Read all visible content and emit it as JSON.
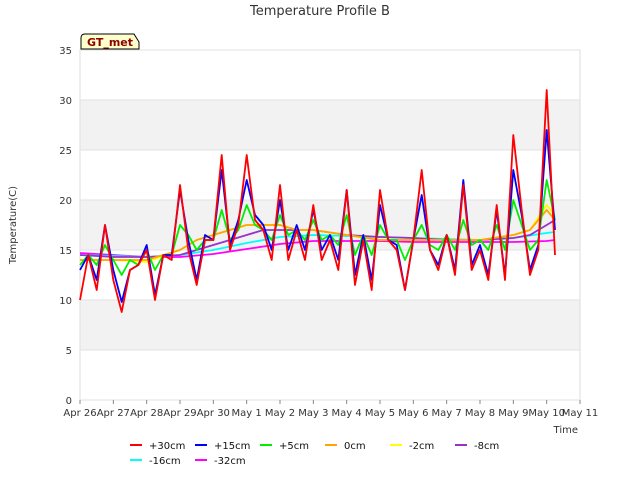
{
  "chart_data": {
    "type": "line",
    "title": "Temperature Profile B",
    "xlabel": "Time",
    "ylabel": "Temperature(C)",
    "badge": "GT_met",
    "ylim": [
      0,
      35
    ],
    "yticks": [
      0,
      5,
      10,
      15,
      20,
      25,
      30,
      35
    ],
    "xlim": [
      "2016-04-26",
      "2016-05-11"
    ],
    "xticks": [
      "Apr 26",
      "Apr 27",
      "Apr 28",
      "Apr 29",
      "Apr 30",
      "May 1",
      "May 2",
      "May 3",
      "May 4",
      "May 5",
      "May 6",
      "May 7",
      "May 8",
      "May 9",
      "May 10",
      "May 11"
    ],
    "grid": true,
    "legend_position": "bottom",
    "series": [
      {
        "name": "+30cm",
        "color": "#ff0000",
        "x": [
          "2016-04-26",
          "2016-04-26 06:00",
          "2016-04-26 12:00",
          "2016-04-26 18:00",
          "2016-04-27",
          "2016-04-27 06:00",
          "2016-04-27 12:00",
          "2016-04-27 18:00",
          "2016-04-28",
          "2016-04-28 06:00",
          "2016-04-28 12:00",
          "2016-04-28 18:00",
          "2016-04-29",
          "2016-04-29 06:00",
          "2016-04-29 12:00",
          "2016-04-29 18:00",
          "2016-04-30",
          "2016-04-30 06:00",
          "2016-04-30 12:00",
          "2016-04-30 18:00",
          "2016-05-01",
          "2016-05-01 06:00",
          "2016-05-01 12:00",
          "2016-05-01 18:00",
          "2016-05-02",
          "2016-05-02 06:00",
          "2016-05-02 12:00",
          "2016-05-02 18:00",
          "2016-05-03",
          "2016-05-03 06:00",
          "2016-05-03 12:00",
          "2016-05-03 18:00",
          "2016-05-04",
          "2016-05-04 06:00",
          "2016-05-04 12:00",
          "2016-05-04 18:00",
          "2016-05-05",
          "2016-05-05 06:00",
          "2016-05-05 12:00",
          "2016-05-05 18:00",
          "2016-05-06",
          "2016-05-06 06:00",
          "2016-05-06 12:00",
          "2016-05-06 18:00",
          "2016-05-07",
          "2016-05-07 06:00",
          "2016-05-07 12:00",
          "2016-05-07 18:00",
          "2016-05-08",
          "2016-05-08 06:00",
          "2016-05-08 12:00",
          "2016-05-08 18:00",
          "2016-05-09",
          "2016-05-09 06:00",
          "2016-05-09 12:00",
          "2016-05-09 18:00",
          "2016-05-10",
          "2016-05-10 06:00"
        ],
        "y": [
          10,
          14.5,
          11,
          17.5,
          12,
          8.8,
          13,
          13.5,
          15,
          10,
          14.5,
          14,
          21.5,
          15,
          11.5,
          16,
          16,
          24.5,
          15,
          17.5,
          24.5,
          18,
          17,
          14,
          21.5,
          14,
          17,
          14,
          19.5,
          14,
          16,
          13,
          21,
          11.5,
          16,
          11,
          21,
          16,
          15,
          11,
          16,
          23,
          15,
          13,
          16.5,
          12.5,
          21.5,
          13,
          15,
          12,
          19.5,
          12,
          26.5,
          19,
          12.5,
          15,
          31,
          14.5
        ]
      },
      {
        "name": "+15cm",
        "color": "#0000ff",
        "x": [
          "2016-04-26",
          "2016-04-26 06:00",
          "2016-04-26 12:00",
          "2016-04-26 18:00",
          "2016-04-27",
          "2016-04-27 06:00",
          "2016-04-27 12:00",
          "2016-04-27 18:00",
          "2016-04-28",
          "2016-04-28 06:00",
          "2016-04-28 12:00",
          "2016-04-28 18:00",
          "2016-04-29",
          "2016-04-29 06:00",
          "2016-04-29 12:00",
          "2016-04-29 18:00",
          "2016-04-30",
          "2016-04-30 06:00",
          "2016-04-30 12:00",
          "2016-04-30 18:00",
          "2016-05-01",
          "2016-05-01 06:00",
          "2016-05-01 12:00",
          "2016-05-01 18:00",
          "2016-05-02",
          "2016-05-02 06:00",
          "2016-05-02 12:00",
          "2016-05-02 18:00",
          "2016-05-03",
          "2016-05-03 06:00",
          "2016-05-03 12:00",
          "2016-05-03 18:00",
          "2016-05-04",
          "2016-05-04 06:00",
          "2016-05-04 12:00",
          "2016-05-04 18:00",
          "2016-05-05",
          "2016-05-05 06:00",
          "2016-05-05 12:00",
          "2016-05-05 18:00",
          "2016-05-06",
          "2016-05-06 06:00",
          "2016-05-06 12:00",
          "2016-05-06 18:00",
          "2016-05-07",
          "2016-05-07 06:00",
          "2016-05-07 12:00",
          "2016-05-07 18:00",
          "2016-05-08",
          "2016-05-08 06:00",
          "2016-05-08 12:00",
          "2016-05-08 18:00",
          "2016-05-09",
          "2016-05-09 06:00",
          "2016-05-09 12:00",
          "2016-05-09 18:00",
          "2016-05-10",
          "2016-05-10 06:00"
        ],
        "y": [
          13,
          14.5,
          12,
          17.5,
          13,
          9.8,
          13,
          13.5,
          15.5,
          10.5,
          14.5,
          14.5,
          21,
          16,
          12,
          16.5,
          16,
          23,
          15.5,
          18,
          22,
          18.5,
          17.5,
          15,
          20,
          15,
          17.5,
          15,
          19,
          15,
          16.5,
          14,
          21,
          12.5,
          16.5,
          12,
          19.5,
          16,
          15.5,
          11,
          16,
          20.5,
          15,
          13.5,
          16.5,
          13,
          22,
          13.5,
          15.5,
          12.5,
          19,
          12.5,
          23,
          18.5,
          13,
          15.5,
          27,
          17
        ]
      },
      {
        "name": "+5cm",
        "color": "#00ee00",
        "x": [
          "2016-04-26",
          "2016-04-26 06:00",
          "2016-04-26 12:00",
          "2016-04-26 18:00",
          "2016-04-27",
          "2016-04-27 06:00",
          "2016-04-27 12:00",
          "2016-04-27 18:00",
          "2016-04-28",
          "2016-04-28 06:00",
          "2016-04-28 12:00",
          "2016-04-28 18:00",
          "2016-04-29",
          "2016-04-29 06:00",
          "2016-04-29 12:00",
          "2016-04-29 18:00",
          "2016-04-30",
          "2016-04-30 06:00",
          "2016-04-30 12:00",
          "2016-04-30 18:00",
          "2016-05-01",
          "2016-05-01 06:00",
          "2016-05-01 12:00",
          "2016-05-01 18:00",
          "2016-05-02",
          "2016-05-02 06:00",
          "2016-05-02 12:00",
          "2016-05-02 18:00",
          "2016-05-03",
          "2016-05-03 06:00",
          "2016-05-03 12:00",
          "2016-05-03 18:00",
          "2016-05-04",
          "2016-05-04 06:00",
          "2016-05-04 12:00",
          "2016-05-04 18:00",
          "2016-05-05",
          "2016-05-05 06:00",
          "2016-05-05 12:00",
          "2016-05-05 18:00",
          "2016-05-06",
          "2016-05-06 06:00",
          "2016-05-06 12:00",
          "2016-05-06 18:00",
          "2016-05-07",
          "2016-05-07 06:00",
          "2016-05-07 12:00",
          "2016-05-07 18:00",
          "2016-05-08",
          "2016-05-08 06:00",
          "2016-05-08 12:00",
          "2016-05-08 18:00",
          "2016-05-09",
          "2016-05-09 06:00",
          "2016-05-09 12:00",
          "2016-05-09 18:00",
          "2016-05-10",
          "2016-05-10 06:00"
        ],
        "y": [
          13.5,
          14.5,
          13.5,
          15.5,
          14,
          12.5,
          14,
          13.5,
          15,
          13,
          14.5,
          14.5,
          17.5,
          16.5,
          15,
          16,
          16,
          19,
          16,
          17,
          19.5,
          17.5,
          17,
          16,
          18.5,
          16.5,
          17,
          16,
          18,
          16,
          16.5,
          15.5,
          18.5,
          14.5,
          16.5,
          14.5,
          17.5,
          16,
          16,
          14,
          16,
          17.5,
          15.5,
          15,
          16.5,
          15,
          18,
          15.5,
          16,
          15,
          17.5,
          15,
          20,
          17.5,
          15,
          16,
          22,
          18
        ]
      },
      {
        "name": "0cm",
        "color": "#ffa500",
        "x": [
          "2016-04-26",
          "2016-04-27",
          "2016-04-28",
          "2016-04-29",
          "2016-04-29 12:00",
          "2016-04-30",
          "2016-04-30 12:00",
          "2016-05-01",
          "2016-05-01 12:00",
          "2016-05-02",
          "2016-05-02 12:00",
          "2016-05-03",
          "2016-05-04",
          "2016-05-05",
          "2016-05-06",
          "2016-05-07",
          "2016-05-08",
          "2016-05-09",
          "2016-05-09 12:00",
          "2016-05-10",
          "2016-05-10 06:00"
        ],
        "y": [
          14,
          14,
          14,
          15,
          16,
          16.5,
          17,
          17.5,
          17.5,
          17.5,
          17,
          17,
          16.5,
          16,
          16,
          16,
          16,
          16.5,
          17,
          19,
          18
        ]
      },
      {
        "name": "-2cm",
        "color": "#ffff00",
        "x": [
          "2016-04-26",
          "2016-04-27",
          "2016-04-28",
          "2016-04-29",
          "2016-04-29 12:00",
          "2016-04-30",
          "2016-04-30 12:00",
          "2016-05-01",
          "2016-05-01 12:00",
          "2016-05-02",
          "2016-05-02 12:00",
          "2016-05-03",
          "2016-05-04",
          "2016-05-05",
          "2016-05-06",
          "2016-05-07",
          "2016-05-08",
          "2016-05-09",
          "2016-05-09 12:00",
          "2016-05-10",
          "2016-05-10 06:00"
        ],
        "y": [
          14,
          14,
          13.8,
          15,
          16,
          16.5,
          17,
          17.5,
          17.5,
          17.5,
          17,
          17,
          16.5,
          16,
          16,
          16,
          16,
          16.5,
          17,
          19.5,
          18.5
        ]
      },
      {
        "name": "-8cm",
        "color": "#9932cc",
        "x": [
          "2016-04-26",
          "2016-04-27",
          "2016-04-28",
          "2016-04-29",
          "2016-04-30",
          "2016-05-01",
          "2016-05-01 12:00",
          "2016-05-02",
          "2016-05-02 12:00",
          "2016-05-03",
          "2016-05-04",
          "2016-05-05",
          "2016-05-06",
          "2016-05-07",
          "2016-05-08",
          "2016-05-09",
          "2016-05-09 12:00",
          "2016-05-10",
          "2016-05-10 06:00"
        ],
        "y": [
          14.5,
          14.3,
          14.3,
          14.5,
          15.5,
          16.5,
          17,
          17,
          17,
          17,
          16.5,
          16.3,
          16.2,
          16,
          16,
          16.2,
          16.5,
          17.5,
          18
        ]
      },
      {
        "name": "-16cm",
        "color": "#00ffff",
        "x": [
          "2016-04-26",
          "2016-04-27",
          "2016-04-28",
          "2016-04-29",
          "2016-04-30",
          "2016-05-01",
          "2016-05-02",
          "2016-05-03",
          "2016-05-04",
          "2016-05-05",
          "2016-05-06",
          "2016-05-07",
          "2016-05-08",
          "2016-05-09",
          "2016-05-10",
          "2016-05-10 06:00"
        ],
        "y": [
          14.5,
          14.4,
          14.3,
          14.5,
          15,
          15.7,
          16.3,
          16.5,
          16.4,
          16.3,
          16.2,
          16.1,
          16,
          16.2,
          16.7,
          16.8
        ]
      },
      {
        "name": "-32cm",
        "color": "#ff00ff",
        "x": [
          "2016-04-26",
          "2016-04-27",
          "2016-04-28",
          "2016-04-29",
          "2016-04-30",
          "2016-05-01",
          "2016-05-02",
          "2016-05-03",
          "2016-05-04",
          "2016-05-05",
          "2016-05-06",
          "2016-05-07",
          "2016-05-08",
          "2016-05-09",
          "2016-05-10",
          "2016-05-10 06:00"
        ],
        "y": [
          14.7,
          14.5,
          14.3,
          14.3,
          14.6,
          15.1,
          15.6,
          15.9,
          15.9,
          15.9,
          15.8,
          15.8,
          15.8,
          15.8,
          15.9,
          16
        ]
      }
    ]
  }
}
